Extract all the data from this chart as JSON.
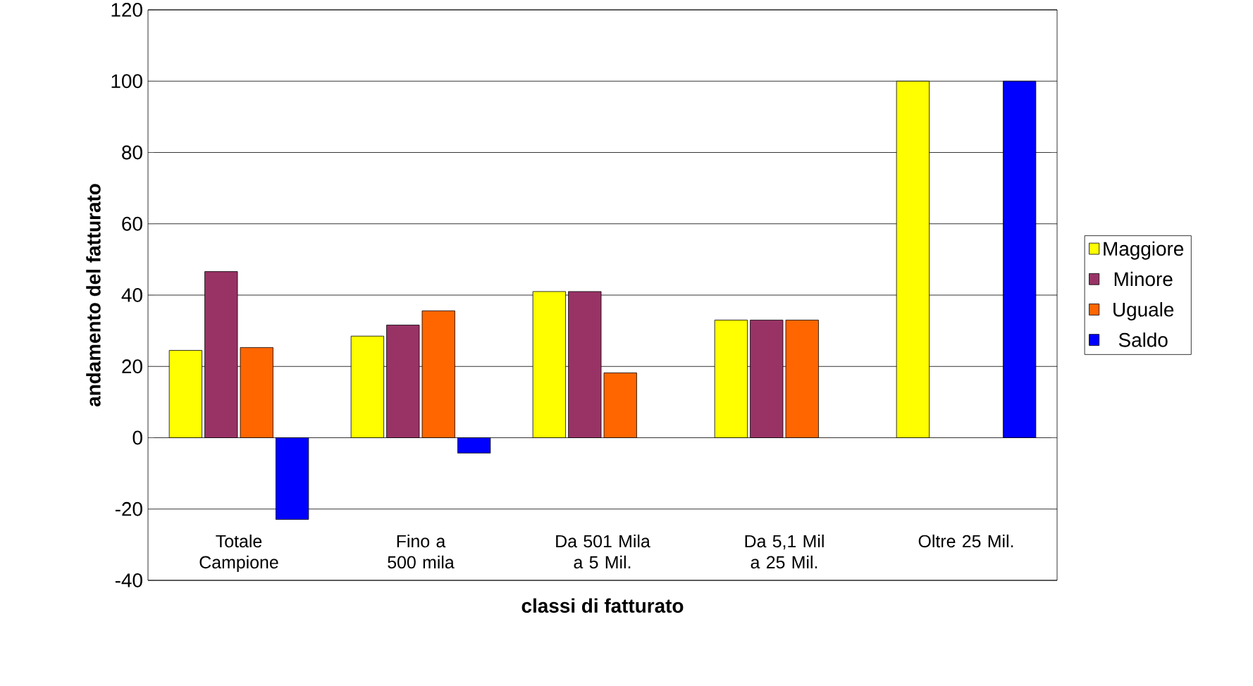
{
  "chart_data": {
    "type": "bar",
    "xlabel": "classi di fatturato",
    "ylabel": "andamento del fatturato",
    "categories": [
      "Totale Campione",
      "Fino a 500 mila",
      "Da 501 Mila a 5 Mil.",
      "Da 5,1 Mil a 25 Mil.",
      "Oltre 25 Mil."
    ],
    "series": [
      {
        "name": "Maggiore",
        "color": "#ffff00",
        "values": [
          24.5,
          28.5,
          41,
          33,
          100
        ]
      },
      {
        "name": "Minore",
        "color": "#993366",
        "values": [
          46.6,
          31.6,
          41,
          33,
          null
        ]
      },
      {
        "name": "Uguale",
        "color": "#ff6600",
        "values": [
          25.3,
          35.6,
          18.2,
          33,
          null
        ]
      },
      {
        "name": "Saldo",
        "color": "#0000ff",
        "values": [
          -22.9,
          -4.3,
          null,
          null,
          100
        ]
      }
    ],
    "ylim": [
      -40,
      120
    ],
    "yticks": [
      -40,
      -20,
      0,
      20,
      40,
      60,
      80,
      100,
      120
    ],
    "grid": "y",
    "legend": "right"
  }
}
